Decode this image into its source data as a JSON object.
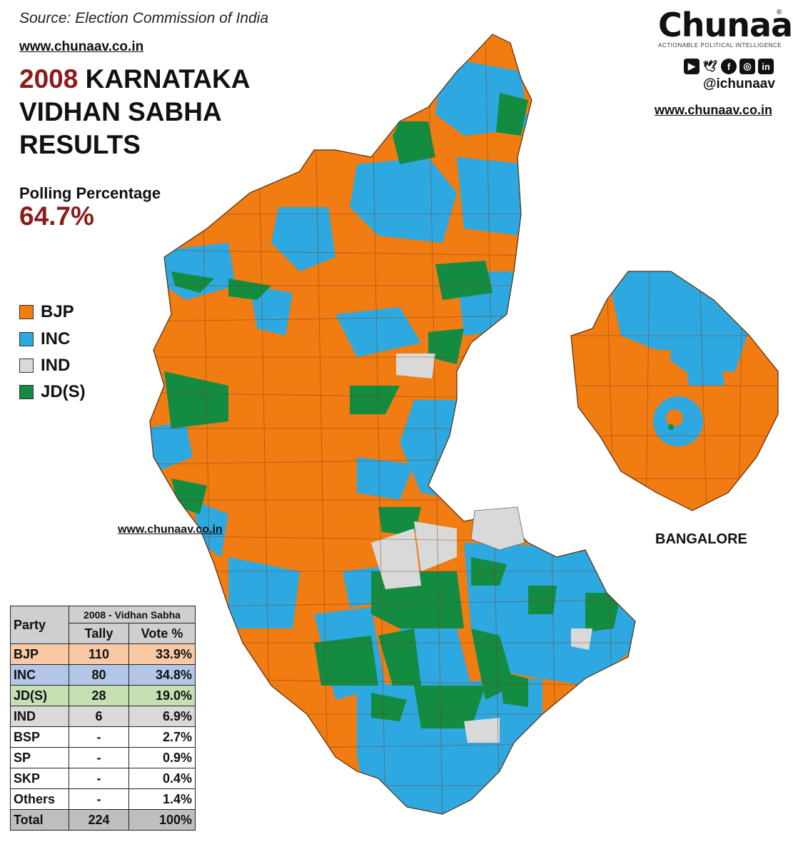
{
  "header": {
    "source": "Source: Election Commission of India",
    "website": "www.chunaav.co.in",
    "title_year": "2008",
    "title_rest": " KARNATAKA VIDHAN SABHA RESULTS",
    "polling_label": "Polling Percentage",
    "polling_value": "64.7%"
  },
  "brand": {
    "logo": "Chunaav",
    "registered": "®",
    "tagline": "ACTIONABLE POLITICAL INTELLIGENCE",
    "social_icons": [
      "youtube-icon",
      "twitter-icon",
      "facebook-icon",
      "instagram-icon",
      "linkedin-icon"
    ],
    "handle": "@ichunaav",
    "website": "www.chunaav.co.in"
  },
  "map": {
    "watermark": "www.chunaav.co.in",
    "inset_label": "BANGALORE"
  },
  "legend": [
    {
      "label": "BJP",
      "color": "#f07c12"
    },
    {
      "label": "INC",
      "color": "#2ea8e0"
    },
    {
      "label": "IND",
      "color": "#d9d9d9"
    },
    {
      "label": "JD(S)",
      "color": "#138c42"
    }
  ],
  "table": {
    "party_header": "Party",
    "group_header": "2008 - Vidhan Sabha",
    "tally_header": "Tally",
    "vote_header": "Vote %",
    "rows": [
      {
        "party": "BJP",
        "tally": "110",
        "vote": "33.9%",
        "bg": "#f9c9a6"
      },
      {
        "party": "INC",
        "tally": "80",
        "vote": "34.8%",
        "bg": "#b4c6e7"
      },
      {
        "party": "JD(S)",
        "tally": "28",
        "vote": "19.0%",
        "bg": "#c6e0b4"
      },
      {
        "party": "IND",
        "tally": "6",
        "vote": "6.9%",
        "bg": "#d9d9d9"
      },
      {
        "party": "BSP",
        "tally": "-",
        "vote": "2.7%",
        "bg": "#ffffff"
      },
      {
        "party": "SP",
        "tally": "-",
        "vote": "0.9%",
        "bg": "#ffffff"
      },
      {
        "party": "SKP",
        "tally": "-",
        "vote": "0.4%",
        "bg": "#ffffff"
      },
      {
        "party": "Others",
        "tally": "-",
        "vote": "1.4%",
        "bg": "#ffffff"
      },
      {
        "party": "Total",
        "tally": "224",
        "vote": "100%",
        "bg": "#bfbfbf"
      }
    ]
  }
}
